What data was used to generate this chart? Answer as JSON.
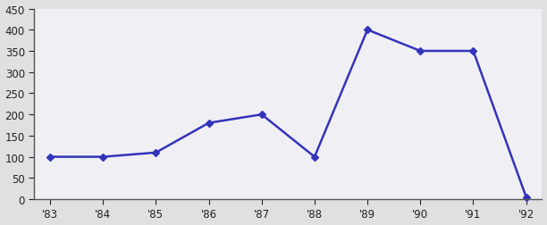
{
  "years": [
    "'83",
    "'84",
    "'85",
    "'86",
    "'87",
    "'88",
    "'89",
    "'90",
    "'91",
    "'92"
  ],
  "values": [
    100,
    100,
    110,
    180,
    200,
    100,
    400,
    350,
    350,
    5
  ],
  "line_color": "#3333bb",
  "marker": "D",
  "marker_size": 4,
  "ylim": [
    0,
    450
  ],
  "yticks": [
    0,
    50,
    100,
    150,
    200,
    250,
    300,
    350,
    400,
    450
  ],
  "background_color": "#e0e0e0",
  "plot_bg_color": "#f0f0f4",
  "tick_label_size": 8.5,
  "linewidth": 1.8
}
